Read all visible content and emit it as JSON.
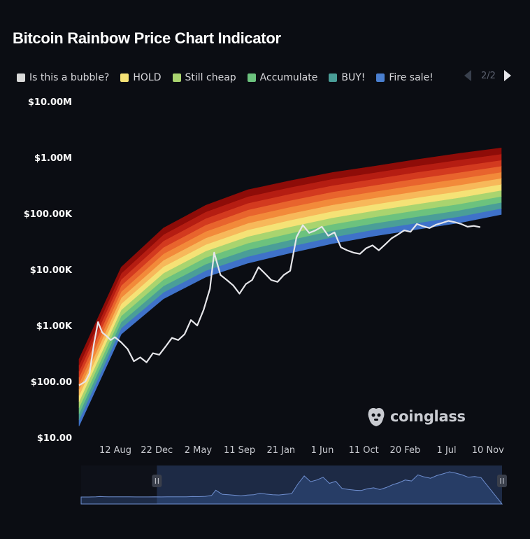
{
  "title": "Bitcoin Rainbow Price Chart Indicator",
  "legend": [
    {
      "label": "Is this a bubble?",
      "color": "#d9d9d9"
    },
    {
      "label": "HOLD",
      "color": "#f5e276"
    },
    {
      "label": "Still cheap",
      "color": "#a9d46f"
    },
    {
      "label": "Accumulate",
      "color": "#6cc27e"
    },
    {
      "label": "BUY!",
      "color": "#4a9e98"
    },
    {
      "label": "Fire sale!",
      "color": "#4a7fd0"
    }
  ],
  "pager": {
    "text": "2/2"
  },
  "watermark": {
    "text": "coinglass",
    "icon": "coinglass-logo-icon"
  },
  "chart_data": {
    "type": "area",
    "y_scale": "log",
    "ylim": [
      10,
      10000000
    ],
    "y_ticks": [
      {
        "value": 10,
        "label": "$10.00"
      },
      {
        "value": 100,
        "label": "$100.00"
      },
      {
        "value": 1000,
        "label": "$1.00K"
      },
      {
        "value": 10000,
        "label": "$10.00K"
      },
      {
        "value": 100000,
        "label": "$100.00K"
      },
      {
        "value": 1000000,
        "label": "$1.00M"
      },
      {
        "value": 10000000,
        "label": "$10.00M"
      }
    ],
    "x_ticks": [
      "12 Aug",
      "22 Dec",
      "2 May",
      "11 Sep",
      "21 Jan",
      "1 Jun",
      "11 Oct",
      "20 Feb",
      "1 Jul",
      "10 Nov"
    ],
    "rainbow_band_colors": [
      "#3f72c9",
      "#4a9e98",
      "#6cc27e",
      "#a9d46f",
      "#f5e276",
      "#f7b85a",
      "#f28a3a",
      "#e8642d",
      "#d33a1f",
      "#b51d12",
      "#8e0c08"
    ],
    "rainbow_band_edges": {
      "x": [
        0,
        10,
        20,
        30,
        40,
        50,
        60,
        70,
        80,
        90,
        100
      ],
      "lower": [
        16,
        700,
        3000,
        7300,
        13000,
        19700,
        29000,
        39700,
        52000,
        68000,
        96000
      ],
      "upper": [
        250,
        11000,
        55000,
        140000,
        265000,
        385000,
        540000,
        700000,
        920000,
        1180000,
        1480000
      ]
    },
    "series": [
      {
        "color": "#e6e6ea",
        "x": [
          0,
          1.5,
          2.5,
          3.5,
          4.5,
          5.5,
          6.5,
          7.5,
          8.5,
          10,
          11.5,
          13,
          14.5,
          16,
          17.5,
          19,
          20.5,
          22,
          23.5,
          25,
          26.5,
          28,
          29.5,
          31,
          32,
          33.5,
          35,
          36.5,
          38,
          39.5,
          41,
          42.5,
          44,
          45.5,
          47,
          48.5,
          50,
          51.5,
          53,
          54.5,
          56,
          57.5,
          59,
          60.5,
          62,
          63.5,
          65,
          66.5,
          68,
          69.5,
          71,
          72.5,
          74,
          75.5,
          77,
          78.5,
          80,
          81.5,
          83,
          84.5,
          86,
          87.5,
          89,
          90.5,
          92,
          93.5,
          95
        ],
        "y": [
          85,
          100,
          140,
          450,
          1150,
          750,
          650,
          550,
          620,
          500,
          380,
          230,
          270,
          220,
          320,
          300,
          420,
          600,
          550,
          700,
          1250,
          1000,
          1900,
          4500,
          20000,
          8000,
          6500,
          5200,
          3700,
          5500,
          6500,
          11000,
          8500,
          6500,
          6000,
          8000,
          9500,
          38000,
          62000,
          45000,
          50000,
          58000,
          40000,
          46000,
          25000,
          22000,
          20000,
          19000,
          24000,
          27000,
          22000,
          28000,
          36000,
          42000,
          50000,
          47000,
          65000,
          59000,
          55000,
          63000,
          68000,
          74000,
          70000,
          65000,
          58000,
          60000,
          57000
        ]
      }
    ],
    "navigator": {
      "range": [
        0.18,
        1.0
      ]
    }
  }
}
